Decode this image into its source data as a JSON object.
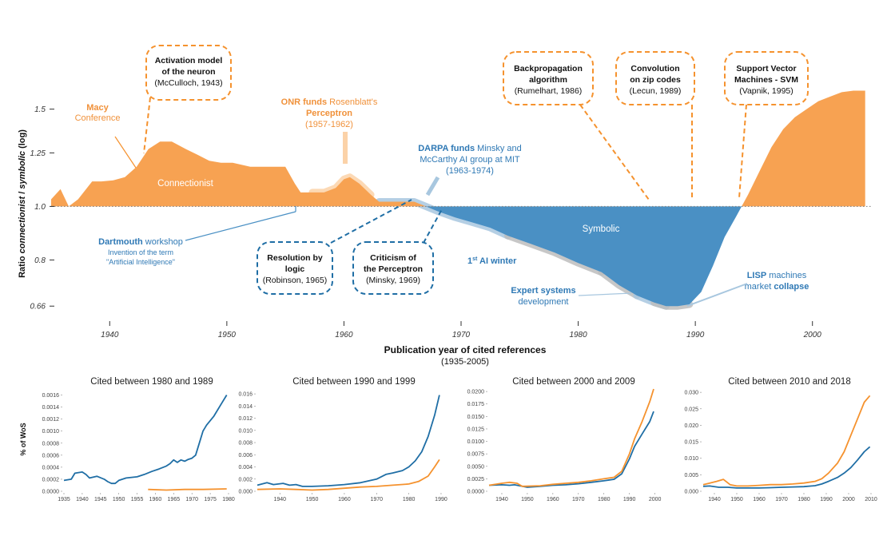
{
  "colors": {
    "connectionist": "#f7a252",
    "symbolic": "#4a90c4",
    "orange_text": "#f0913a",
    "blue_text": "#2f79b5",
    "blue_line": "#1f6ea5",
    "orange_line": "#f5922e",
    "halo_orange": "#fbd2a8",
    "halo_blue": "#a8c7df",
    "halo_grey": "#bdbdbd"
  },
  "chart_data": [
    {
      "type": "area",
      "xlabel": "Publication year of cited references",
      "xlabel_sub": "(1935-2005)",
      "ylabel_parts": [
        "Ratio ",
        "connectionist",
        " / ",
        "symbolic",
        " (log)"
      ],
      "y_scale": "log",
      "xlim": [
        1935,
        2005
      ],
      "ylim": [
        0.62,
        1.65
      ],
      "x_ticks": [
        "1940",
        "1950",
        "1960",
        "1970",
        "1980",
        "1990",
        "2000"
      ],
      "y_ticks": [
        "1.5",
        "1.25",
        "1.0",
        "0.8",
        "0.66"
      ],
      "area_labels": [
        "Connectionist",
        "Symbolic"
      ],
      "x": [
        1935.0,
        1935.8,
        1936.5,
        1937.3,
        1938.5,
        1939.3,
        1940.3,
        1941.3,
        1942.3,
        1943.3,
        1944.3,
        1945.3,
        1946.5,
        1947.5,
        1948.5,
        1949.5,
        1950.5,
        1952.0,
        1953.5,
        1955.0,
        1955.8,
        1956.3,
        1957.3,
        1958.3,
        1959.3,
        1960.0,
        1960.5,
        1961.3,
        1962.3,
        1963.0,
        1964.5,
        1966.0,
        1967.0,
        1968.0,
        1969.5,
        1971.0,
        1972.5,
        1974.0,
        1976.0,
        1978.0,
        1980.0,
        1982.0,
        1983.5,
        1985.0,
        1986.5,
        1987.5,
        1988.5,
        1989.5,
        1990.5,
        1991.5,
        1992.5,
        1993.5,
        1994.5,
        1995.5,
        1996.5,
        1997.5,
        1998.5,
        1999.5,
        2000.5,
        2001.5,
        2002.5,
        2003.5,
        2004.5
      ],
      "ratio": [
        1.03,
        1.075,
        1.0,
        1.03,
        1.11,
        1.11,
        1.115,
        1.13,
        1.18,
        1.27,
        1.31,
        1.31,
        1.27,
        1.24,
        1.21,
        1.2,
        1.2,
        1.18,
        1.18,
        1.18,
        1.1,
        1.06,
        1.06,
        1.06,
        1.08,
        1.12,
        1.13,
        1.1,
        1.05,
        1.02,
        1.02,
        1.02,
        1.0,
        0.98,
        0.955,
        0.935,
        0.915,
        0.885,
        0.855,
        0.825,
        0.79,
        0.76,
        0.72,
        0.69,
        0.67,
        0.66,
        0.66,
        0.665,
        0.7,
        0.78,
        0.88,
        0.96,
        1.05,
        1.16,
        1.28,
        1.38,
        1.45,
        1.5,
        1.55,
        1.58,
        1.61,
        1.62,
        1.62
      ],
      "annotations": {
        "activation": {
          "lines": [
            "Activation model",
            "of the neuron",
            "(McCulloch, 1943)"
          ]
        },
        "backprop": {
          "lines": [
            "Backpropagation",
            "algorithm",
            "(Rumelhart, 1986)"
          ]
        },
        "convolution": {
          "lines": [
            "Convolution",
            "on zip codes",
            "(Lecun, 1989)"
          ]
        },
        "svm": {
          "lines": [
            "Support Vector",
            "Machines - SVM",
            "(Vapnik, 1995)"
          ]
        },
        "resolution": {
          "lines": [
            "Resolution by",
            "logic",
            "(Robinson, 1965)"
          ]
        },
        "criticism": {
          "lines": [
            "Criticism of",
            "the Perceptron",
            "(Minsky, 1969)"
          ]
        },
        "macy": {
          "bold": "Macy",
          "rest": "Conference"
        },
        "onr": {
          "bold": "ONR funds",
          "rest1": " Rosenblatt's",
          "line2": "Perceptron",
          "line3": "(1957-1962)"
        },
        "darpa": {
          "bold": "DARPA funds",
          "rest1": " Minsky and",
          "line2": "McCarthy AI group at MIT",
          "line3": "(1963-1974)"
        },
        "dartmouth": {
          "bold": "Dartmouth",
          "rest1": " workshop",
          "line2": "Invention of the term",
          "line3": "\"Artificial Intelligence\""
        },
        "ai_winter": {
          "sup": "st",
          "pre": "1",
          "rest": " AI winter"
        },
        "expert": {
          "line1": "Expert systems",
          "line2": "development"
        },
        "lisp": {
          "bold1": "LISP",
          "rest1": " machines",
          "rest2": "market ",
          "bold2": "collapse"
        }
      }
    },
    {
      "type": "line",
      "title": "Cited between 1980 and 1989",
      "ylabel": "% of WoS",
      "xlim": [
        1935,
        1980
      ],
      "ylim": [
        0,
        0.0017
      ],
      "x_ticks": [
        "1935",
        "1940",
        "1945",
        "1950",
        "1955",
        "1960",
        "1965",
        "1970",
        "1975",
        "1980"
      ],
      "y_ticks": [
        "0.0000",
        "0.0002",
        "0.0004",
        "0.0006",
        "0.0008",
        "0.0010",
        "0.0012",
        "0.0014",
        "0.0016"
      ],
      "series": [
        {
          "color": "blue",
          "x": [
            1935,
            1937,
            1938,
            1940,
            1941,
            1942,
            1944,
            1946,
            1947,
            1948,
            1949,
            1950,
            1952,
            1955,
            1957,
            1959,
            1961,
            1963,
            1964,
            1965,
            1966,
            1967,
            1968,
            1969,
            1970,
            1971,
            1972,
            1973,
            1974,
            1976,
            1978,
            1979.5
          ],
          "y": [
            0.00018,
            0.0002,
            0.0003,
            0.00032,
            0.00028,
            0.00022,
            0.00025,
            0.0002,
            0.00016,
            0.00013,
            0.00013,
            0.00018,
            0.00022,
            0.00024,
            0.00028,
            0.00033,
            0.00037,
            0.00042,
            0.00046,
            0.00052,
            0.00048,
            0.00052,
            0.0005,
            0.00053,
            0.00055,
            0.0006,
            0.0008,
            0.001,
            0.0011,
            0.00125,
            0.00145,
            0.0016
          ]
        },
        {
          "color": "orange",
          "x": [
            1958,
            1963,
            1968,
            1973,
            1979.5
          ],
          "y": [
            3e-05,
            2e-05,
            3e-05,
            3e-05,
            4e-05
          ]
        }
      ]
    },
    {
      "type": "line",
      "title": "Cited between 1990 and 1999",
      "xlim": [
        1933,
        1991
      ],
      "ylim": [
        0,
        0.0168
      ],
      "x_ticks": [
        "1940",
        "1950",
        "1960",
        "1970",
        "1980",
        "1990"
      ],
      "y_ticks": [
        "0.000",
        "0.002",
        "0.004",
        "0.006",
        "0.008",
        "0.010",
        "0.012",
        "0.014",
        "0.016"
      ],
      "series": [
        {
          "color": "blue",
          "x": [
            1933,
            1936,
            1938,
            1941,
            1943,
            1945,
            1947,
            1950,
            1955,
            1960,
            1965,
            1970,
            1973,
            1975,
            1978,
            1980,
            1982,
            1984,
            1986,
            1988,
            1989.5
          ],
          "y": [
            0.001,
            0.0014,
            0.0011,
            0.0013,
            0.001,
            0.0011,
            0.0008,
            0.0008,
            0.0009,
            0.0011,
            0.0014,
            0.002,
            0.0028,
            0.003,
            0.0034,
            0.004,
            0.005,
            0.0065,
            0.009,
            0.0125,
            0.0158
          ]
        },
        {
          "color": "orange",
          "x": [
            1933,
            1940,
            1945,
            1950,
            1955,
            1960,
            1965,
            1970,
            1975,
            1980,
            1983,
            1986,
            1988,
            1989.5
          ],
          "y": [
            0.0003,
            0.0004,
            0.0003,
            0.0002,
            0.0003,
            0.0005,
            0.0007,
            0.0008,
            0.001,
            0.0012,
            0.0016,
            0.0025,
            0.004,
            0.0052
          ]
        }
      ]
    },
    {
      "type": "line",
      "title": "Cited between 2000 and 2009",
      "xlim": [
        1935,
        2002
      ],
      "ylim": [
        0,
        0.0205
      ],
      "x_ticks": [
        "1940",
        "1950",
        "1960",
        "1970",
        "1980",
        "1990",
        "2000"
      ],
      "y_ticks": [
        "0.0000",
        "0.0025",
        "0.0050",
        "0.0075",
        "0.0100",
        "0.0125",
        "0.0150",
        "0.0175",
        "0.0200"
      ],
      "series": [
        {
          "color": "blue",
          "x": [
            1935,
            1940,
            1943,
            1945,
            1950,
            1955,
            1960,
            1965,
            1970,
            1975,
            1980,
            1984,
            1987,
            1990,
            1992,
            1995,
            1998,
            1999.5
          ],
          "y": [
            0.0012,
            0.0013,
            0.0012,
            0.0013,
            0.0008,
            0.001,
            0.0012,
            0.0013,
            0.0015,
            0.0018,
            0.0021,
            0.0024,
            0.0035,
            0.0065,
            0.009,
            0.0115,
            0.014,
            0.016
          ]
        },
        {
          "color": "orange",
          "x": [
            1935,
            1940,
            1943,
            1946,
            1948,
            1955,
            1960,
            1965,
            1970,
            1975,
            1980,
            1984,
            1987,
            1990,
            1992,
            1995,
            1998,
            1999.5
          ],
          "y": [
            0.0012,
            0.0016,
            0.0018,
            0.0016,
            0.001,
            0.0011,
            0.0014,
            0.0016,
            0.0018,
            0.0021,
            0.0025,
            0.0028,
            0.004,
            0.0075,
            0.0105,
            0.014,
            0.018,
            0.0205
          ]
        }
      ]
    },
    {
      "type": "line",
      "title": "Cited between 2010 and 2018",
      "xlim": [
        1935,
        2010
      ],
      "ylim": [
        0,
        0.031
      ],
      "x_ticks": [
        "1940",
        "1950",
        "1960",
        "1970",
        "1980",
        "1990",
        "2000",
        "2010"
      ],
      "y_ticks": [
        "0.000",
        "0.005",
        "0.010",
        "0.015",
        "0.020",
        "0.025",
        "0.030"
      ],
      "series": [
        {
          "color": "blue",
          "x": [
            1935,
            1938,
            1942,
            1946,
            1950,
            1955,
            1960,
            1965,
            1970,
            1975,
            1980,
            1985,
            1988,
            1991,
            1995,
            1998,
            2001,
            2004,
            2007,
            2009.5
          ],
          "y": [
            0.0015,
            0.0016,
            0.0012,
            0.0012,
            0.001,
            0.001,
            0.001,
            0.0011,
            0.0012,
            0.0013,
            0.0014,
            0.0017,
            0.0022,
            0.003,
            0.0042,
            0.0055,
            0.0072,
            0.0095,
            0.012,
            0.0135
          ]
        },
        {
          "color": "orange",
          "x": [
            1935,
            1938,
            1941,
            1944,
            1947,
            1950,
            1955,
            1960,
            1965,
            1970,
            1975,
            1980,
            1985,
            1988,
            1991,
            1995,
            1998,
            2001,
            2004,
            2007,
            2009.5
          ],
          "y": [
            0.002,
            0.0025,
            0.003,
            0.0036,
            0.002,
            0.0016,
            0.0016,
            0.0018,
            0.002,
            0.002,
            0.0022,
            0.0025,
            0.003,
            0.0038,
            0.0055,
            0.0085,
            0.012,
            0.017,
            0.022,
            0.027,
            0.029
          ]
        }
      ]
    }
  ]
}
